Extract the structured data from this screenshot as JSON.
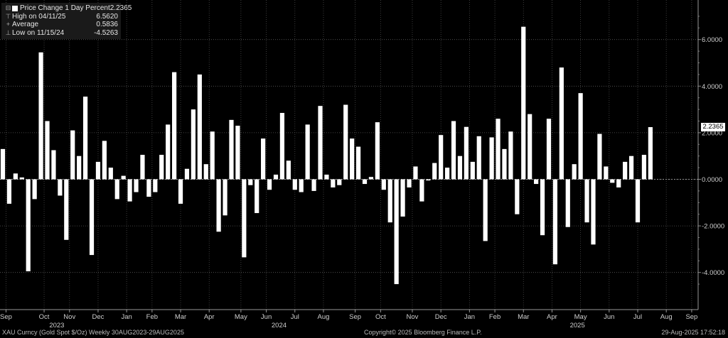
{
  "legend": {
    "title": "Price Change 1 Day Percent",
    "title_value": "2.2365",
    "high_label": "High on 04/11/25",
    "high_value": "6.5620",
    "avg_label": "Average",
    "avg_value": "0.5836",
    "low_label": "Low on 11/15/24",
    "low_value": "-4.5263"
  },
  "last_value_tag": "2.2365",
  "footer": {
    "left": "XAU Curncy (Gold Spot  $/Oz)  Weekly 30AUG2023-29AUG2025",
    "center": "Copyright© 2025 Bloomberg Finance L.P.",
    "right": "29-Aug-2025 17:52:18"
  },
  "colors": {
    "background": "#000000",
    "bars": "#ffffff",
    "legend_bg": "#1a1a1a",
    "text": "#cccccc"
  },
  "chart_data": {
    "type": "bar",
    "title": "Price Change 1 Day Percent",
    "ylim": [
      -4.6,
      7.4
    ],
    "yticks": [
      "6.0000",
      "4.0000",
      "2.0000",
      "0.0000",
      "-2.0000",
      "-4.0000"
    ],
    "ytick_values": [
      6,
      4,
      2,
      0,
      -2,
      -4
    ],
    "month_labels": [
      "Sep",
      "Oct",
      "Nov",
      "Dec",
      "Jan",
      "Feb",
      "Mar",
      "Apr",
      "May",
      "Jun",
      "Jul",
      "Aug",
      "Sep",
      "Oct",
      "Nov",
      "Dec",
      "Jan",
      "Feb",
      "Mar",
      "Apr",
      "May",
      "Jun",
      "Jul",
      "Aug",
      "Sep"
    ],
    "month_positions": [
      0.5,
      6.5,
      10.5,
      15.0,
      19.5,
      23.5,
      28.0,
      32.5,
      37.5,
      41.5,
      46.0,
      50.5,
      55.5,
      59.5,
      64.5,
      69.0,
      73.5,
      77.5,
      82.0,
      86.5,
      91.0,
      95.5,
      100.0,
      104.5,
      108.5
    ],
    "year_labels": [
      "2023",
      "2024",
      "2025"
    ],
    "year_positions": [
      8.5,
      43.5,
      90.5
    ],
    "values": [
      1.3,
      -1.05,
      0.25,
      0.08,
      -3.95,
      -0.85,
      5.45,
      2.5,
      1.25,
      -0.7,
      -2.6,
      2.1,
      1.0,
      3.55,
      -3.25,
      0.75,
      1.65,
      0.5,
      -0.85,
      0.15,
      -0.95,
      -0.55,
      1.05,
      -0.75,
      -0.55,
      1.05,
      2.35,
      4.6,
      -1.05,
      0.45,
      3.0,
      4.5,
      0.65,
      2.05,
      -2.25,
      -1.55,
      2.55,
      2.3,
      -3.35,
      -0.25,
      -1.45,
      1.75,
      -0.45,
      0.2,
      2.85,
      0.8,
      -0.45,
      -0.55,
      2.35,
      -0.5,
      3.15,
      0.2,
      -0.35,
      -0.25,
      3.2,
      1.75,
      1.4,
      -0.2,
      0.1,
      2.45,
      -0.45,
      -1.85,
      -4.5,
      -1.6,
      -0.35,
      0.55,
      -0.95,
      -0.05,
      0.7,
      1.9,
      0.5,
      2.5,
      1.0,
      2.25,
      0.75,
      1.85,
      -2.65,
      1.8,
      2.6,
      1.3,
      2.05,
      -1.5,
      6.55,
      2.8,
      -0.2,
      -2.4,
      2.6,
      -3.65,
      4.8,
      -2.05,
      0.65,
      3.7,
      -1.85,
      -2.8,
      1.95,
      0.55,
      -0.15,
      -0.35,
      0.75,
      1.0,
      -1.85,
      1.05,
      2.24
    ]
  }
}
